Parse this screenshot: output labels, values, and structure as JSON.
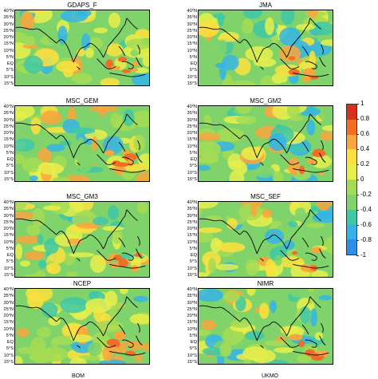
{
  "panels": [
    {
      "title": "GDAPS_F"
    },
    {
      "title": "JMA"
    },
    {
      "title": "MSC_GEM"
    },
    {
      "title": "MSC_GM2"
    },
    {
      "title": "MSC_GM3"
    },
    {
      "title": "MSC_SEF"
    },
    {
      "title": "NCEP"
    },
    {
      "title": "NIMR"
    }
  ],
  "lat_labels": [
    "40°N",
    "35°N",
    "30°N",
    "25°N",
    "20°N",
    "15°N",
    "10°N",
    "5°N",
    "EQ",
    "5°S",
    "10°S",
    "15°S"
  ],
  "colorbar": {
    "ticks": [
      "1",
      "0.8",
      "0.6",
      "0.4",
      "0.2",
      "0",
      "-0.2",
      "-0.4",
      "-0.6",
      "-0.8",
      "-1"
    ],
    "colors": [
      "#d7301f",
      "#f46d24",
      "#fba53d",
      "#fde03e",
      "#e7ef4a",
      "#a6dc55",
      "#7fd36a",
      "#3fc8a7",
      "#34b4e6",
      "#2c8fe6"
    ]
  },
  "cutoff_labels": [
    "BOM",
    "UKMO"
  ]
}
